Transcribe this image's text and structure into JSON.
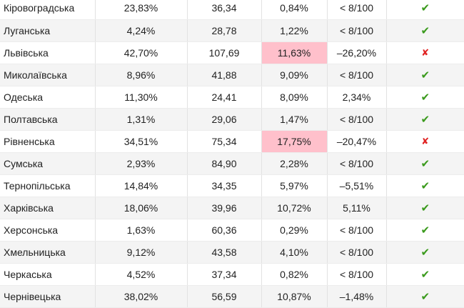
{
  "colors": {
    "highlight": "#ffc0cb",
    "check": "#3a9a1c",
    "cross": "#e02424"
  },
  "rows": [
    {
      "region": "Кіровоградська",
      "c1": "23,83%",
      "c2": "36,34",
      "c3": "0,84%",
      "c4": "< 8/100",
      "ok": true,
      "hl": false,
      "icon": "check-icon"
    },
    {
      "region": "Луганська",
      "c1": "4,24%",
      "c2": "28,78",
      "c3": "1,22%",
      "c4": "< 8/100",
      "ok": true,
      "hl": false,
      "icon": "check-icon"
    },
    {
      "region": "Львівська",
      "c1": "42,70%",
      "c2": "107,69",
      "c3": "11,63%",
      "c4": "–26,20%",
      "ok": false,
      "hl": true,
      "icon": "cross-icon"
    },
    {
      "region": "Миколаївська",
      "c1": "8,96%",
      "c2": "41,88",
      "c3": "9,09%",
      "c4": "< 8/100",
      "ok": true,
      "hl": false,
      "icon": "check-icon"
    },
    {
      "region": "Одеська",
      "c1": "11,30%",
      "c2": "24,41",
      "c3": "8,09%",
      "c4": "2,34%",
      "ok": true,
      "hl": false,
      "icon": "check-icon"
    },
    {
      "region": "Полтавська",
      "c1": "1,31%",
      "c2": "29,06",
      "c3": "1,47%",
      "c4": "< 8/100",
      "ok": true,
      "hl": false,
      "icon": "check-icon"
    },
    {
      "region": "Рівненська",
      "c1": "34,51%",
      "c2": "75,34",
      "c3": "17,75%",
      "c4": "–20,47%",
      "ok": false,
      "hl": true,
      "icon": "cross-icon"
    },
    {
      "region": "Сумська",
      "c1": "2,93%",
      "c2": "84,90",
      "c3": "2,28%",
      "c4": "< 8/100",
      "ok": true,
      "hl": false,
      "icon": "check-icon"
    },
    {
      "region": "Тернопільська",
      "c1": "14,84%",
      "c2": "34,35",
      "c3": "5,97%",
      "c4": "–5,51%",
      "ok": true,
      "hl": false,
      "icon": "check-icon"
    },
    {
      "region": "Харківська",
      "c1": "18,06%",
      "c2": "39,96",
      "c3": "10,72%",
      "c4": "5,11%",
      "ok": true,
      "hl": false,
      "icon": "check-icon"
    },
    {
      "region": "Херсонська",
      "c1": "1,63%",
      "c2": "60,36",
      "c3": "0,29%",
      "c4": "< 8/100",
      "ok": true,
      "hl": false,
      "icon": "check-icon"
    },
    {
      "region": "Хмельницька",
      "c1": "9,12%",
      "c2": "43,58",
      "c3": "4,10%",
      "c4": "< 8/100",
      "ok": true,
      "hl": false,
      "icon": "check-icon"
    },
    {
      "region": "Черкаська",
      "c1": "4,52%",
      "c2": "37,34",
      "c3": "0,82%",
      "c4": "< 8/100",
      "ok": true,
      "hl": false,
      "icon": "check-icon"
    },
    {
      "region": "Чернівецька",
      "c1": "38,02%",
      "c2": "56,59",
      "c3": "10,87%",
      "c4": "–1,48%",
      "ok": true,
      "hl": false,
      "icon": "check-icon"
    }
  ]
}
